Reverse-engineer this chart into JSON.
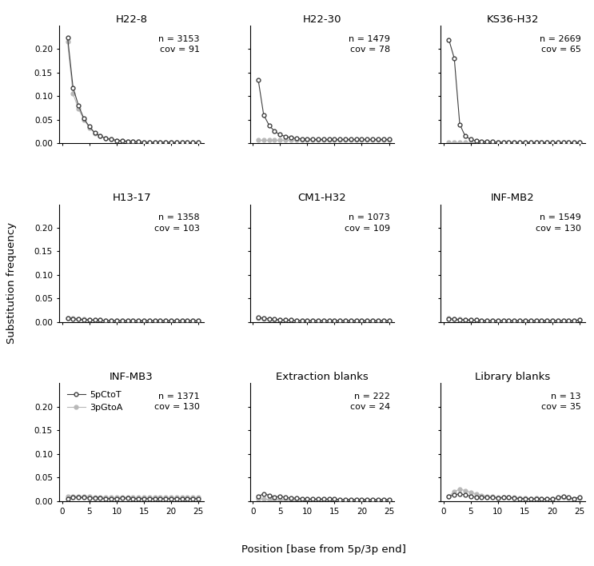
{
  "panels": [
    {
      "title": "H22-8",
      "n": 3153,
      "cov": 91,
      "row": 0,
      "col": 0,
      "ctot": [
        0.225,
        0.118,
        0.08,
        0.052,
        0.035,
        0.022,
        0.015,
        0.01,
        0.008,
        0.006,
        0.005,
        0.004,
        0.003,
        0.003,
        0.002,
        0.002,
        0.002,
        0.002,
        0.002,
        0.002,
        0.001,
        0.001,
        0.001,
        0.001,
        0.001
      ],
      "gtoa": [
        0.215,
        0.105,
        0.073,
        0.05,
        0.033,
        0.021,
        0.015,
        0.01,
        0.008,
        0.006,
        0.005,
        0.004,
        0.003,
        0.003,
        0.002,
        0.002,
        0.002,
        0.002,
        0.002,
        0.002,
        0.001,
        0.001,
        0.001,
        0.001,
        0.001
      ]
    },
    {
      "title": "H22-30",
      "n": 1479,
      "cov": 78,
      "row": 0,
      "col": 1,
      "ctot": [
        0.135,
        0.06,
        0.038,
        0.025,
        0.018,
        0.014,
        0.012,
        0.01,
        0.009,
        0.009,
        0.008,
        0.008,
        0.008,
        0.008,
        0.008,
        0.008,
        0.008,
        0.008,
        0.008,
        0.008,
        0.008,
        0.008,
        0.008,
        0.008,
        0.008
      ],
      "gtoa": [
        0.007,
        0.007,
        0.007,
        0.007,
        0.007,
        0.007,
        0.007,
        0.007,
        0.007,
        0.007,
        0.007,
        0.007,
        0.007,
        0.007,
        0.007,
        0.007,
        0.007,
        0.007,
        0.007,
        0.007,
        0.007,
        0.007,
        0.007,
        0.007,
        0.007
      ]
    },
    {
      "title": "KS36-H32",
      "n": 2669,
      "cov": 65,
      "row": 0,
      "col": 2,
      "ctot": [
        0.22,
        0.18,
        0.04,
        0.015,
        0.008,
        0.005,
        0.004,
        0.003,
        0.003,
        0.002,
        0.002,
        0.002,
        0.002,
        0.002,
        0.002,
        0.001,
        0.001,
        0.001,
        0.001,
        0.001,
        0.001,
        0.001,
        0.001,
        0.001,
        0.002
      ],
      "gtoa": [
        0.001,
        0.001,
        0.001,
        0.001,
        0.001,
        0.001,
        0.001,
        0.001,
        0.001,
        0.001,
        0.001,
        0.001,
        0.001,
        0.001,
        0.001,
        0.001,
        0.001,
        0.001,
        0.001,
        0.001,
        0.001,
        0.001,
        0.001,
        0.001,
        0.002
      ]
    },
    {
      "title": "H13-17",
      "n": 1358,
      "cov": 103,
      "row": 1,
      "col": 0,
      "ctot": [
        0.008,
        0.007,
        0.006,
        0.005,
        0.005,
        0.004,
        0.004,
        0.003,
        0.003,
        0.003,
        0.003,
        0.003,
        0.003,
        0.003,
        0.003,
        0.003,
        0.003,
        0.003,
        0.003,
        0.003,
        0.003,
        0.003,
        0.003,
        0.003,
        0.003
      ],
      "gtoa": [
        0.009,
        0.008,
        0.007,
        0.006,
        0.005,
        0.004,
        0.004,
        0.003,
        0.003,
        0.003,
        0.003,
        0.003,
        0.003,
        0.003,
        0.003,
        0.003,
        0.003,
        0.003,
        0.003,
        0.003,
        0.003,
        0.003,
        0.003,
        0.003,
        0.003
      ]
    },
    {
      "title": "CM1-H32",
      "n": 1073,
      "cov": 109,
      "row": 1,
      "col": 1,
      "ctot": [
        0.01,
        0.008,
        0.007,
        0.006,
        0.005,
        0.004,
        0.004,
        0.003,
        0.003,
        0.003,
        0.003,
        0.003,
        0.003,
        0.003,
        0.003,
        0.003,
        0.003,
        0.003,
        0.003,
        0.003,
        0.003,
        0.003,
        0.003,
        0.003,
        0.003
      ],
      "gtoa": [
        0.008,
        0.007,
        0.006,
        0.005,
        0.005,
        0.004,
        0.004,
        0.003,
        0.003,
        0.003,
        0.003,
        0.003,
        0.003,
        0.003,
        0.003,
        0.003,
        0.003,
        0.003,
        0.003,
        0.003,
        0.003,
        0.003,
        0.003,
        0.003,
        0.003
      ]
    },
    {
      "title": "INF-MB2",
      "n": 1549,
      "cov": 130,
      "row": 1,
      "col": 2,
      "ctot": [
        0.007,
        0.006,
        0.005,
        0.005,
        0.004,
        0.004,
        0.003,
        0.003,
        0.003,
        0.003,
        0.003,
        0.003,
        0.003,
        0.003,
        0.003,
        0.003,
        0.003,
        0.003,
        0.003,
        0.003,
        0.003,
        0.003,
        0.003,
        0.003,
        0.005
      ],
      "gtoa": [
        0.008,
        0.007,
        0.006,
        0.005,
        0.004,
        0.004,
        0.003,
        0.003,
        0.003,
        0.003,
        0.003,
        0.003,
        0.003,
        0.003,
        0.003,
        0.003,
        0.003,
        0.003,
        0.003,
        0.003,
        0.003,
        0.003,
        0.003,
        0.003,
        0.005
      ]
    },
    {
      "title": "INF-MB3",
      "n": 1371,
      "cov": 130,
      "row": 2,
      "col": 0,
      "ctot": [
        0.005,
        0.008,
        0.007,
        0.007,
        0.006,
        0.006,
        0.006,
        0.005,
        0.005,
        0.005,
        0.006,
        0.006,
        0.005,
        0.005,
        0.005,
        0.005,
        0.005,
        0.005,
        0.005,
        0.005,
        0.005,
        0.005,
        0.005,
        0.005,
        0.005
      ],
      "gtoa": [
        0.009,
        0.01,
        0.009,
        0.01,
        0.009,
        0.008,
        0.008,
        0.007,
        0.007,
        0.007,
        0.008,
        0.007,
        0.007,
        0.007,
        0.007,
        0.007,
        0.007,
        0.007,
        0.007,
        0.007,
        0.007,
        0.007,
        0.007,
        0.007,
        0.007
      ]
    },
    {
      "title": "Extraction blanks",
      "n": 222,
      "cov": 24,
      "row": 2,
      "col": 1,
      "ctot": [
        0.01,
        0.015,
        0.012,
        0.008,
        0.01,
        0.007,
        0.006,
        0.006,
        0.005,
        0.004,
        0.004,
        0.004,
        0.004,
        0.004,
        0.004,
        0.003,
        0.003,
        0.003,
        0.003,
        0.003,
        0.003,
        0.003,
        0.003,
        0.003,
        0.003
      ],
      "gtoa": [
        0.005,
        0.004,
        0.003,
        0.003,
        0.003,
        0.002,
        0.002,
        0.002,
        0.002,
        0.002,
        0.002,
        0.002,
        0.002,
        0.002,
        0.002,
        0.001,
        0.001,
        0.001,
        0.001,
        0.001,
        0.001,
        0.001,
        0.001,
        0.001,
        0.001
      ]
    },
    {
      "title": "Library blanks",
      "n": 13,
      "cov": 35,
      "row": 2,
      "col": 2,
      "ctot": [
        0.01,
        0.013,
        0.015,
        0.013,
        0.01,
        0.008,
        0.008,
        0.007,
        0.007,
        0.006,
        0.007,
        0.007,
        0.006,
        0.005,
        0.005,
        0.004,
        0.005,
        0.004,
        0.004,
        0.004,
        0.007,
        0.01,
        0.007,
        0.005,
        0.008
      ],
      "gtoa": [
        0.01,
        0.02,
        0.025,
        0.022,
        0.018,
        0.015,
        0.012,
        0.01,
        0.009,
        0.008,
        0.008,
        0.007,
        0.007,
        0.006,
        0.006,
        0.005,
        0.006,
        0.005,
        0.005,
        0.005,
        0.006,
        0.007,
        0.006,
        0.005,
        0.006
      ]
    }
  ],
  "ctot_color": "#404040",
  "gtoa_color": "#b8b8b8",
  "positions": [
    1,
    2,
    3,
    4,
    5,
    6,
    7,
    8,
    9,
    10,
    11,
    12,
    13,
    14,
    15,
    16,
    17,
    18,
    19,
    20,
    21,
    22,
    23,
    24,
    25
  ],
  "ylim": [
    0.0,
    0.25
  ],
  "yticks": [
    0.0,
    0.05,
    0.1,
    0.15,
    0.2
  ],
  "xticks": [
    0,
    5,
    10,
    15,
    20,
    25
  ],
  "ylabel": "Substitution frequency",
  "xlabel": "Position [base from 5p/3p end]",
  "legend_labels": [
    "5pCtoT",
    "3pGtoA"
  ],
  "background_color": "#ffffff",
  "nrows": 3,
  "ncols": 3
}
